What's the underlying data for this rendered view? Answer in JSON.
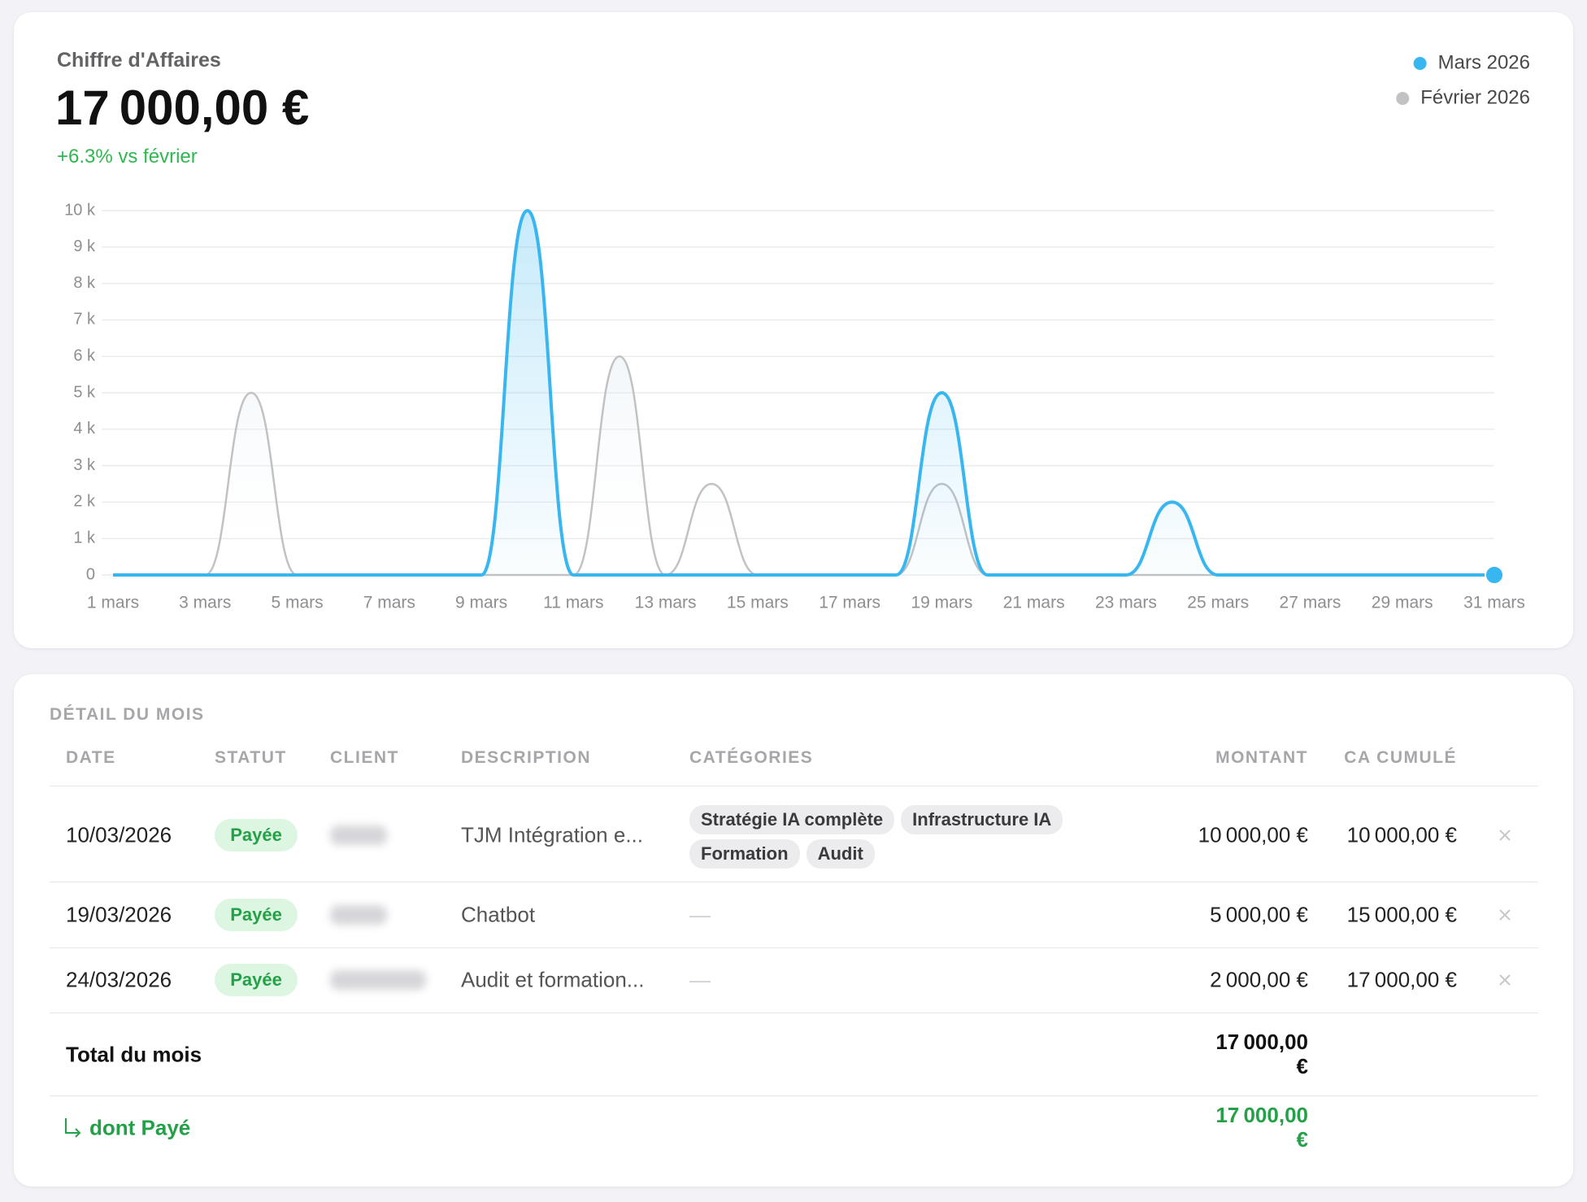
{
  "header": {
    "title": "Chiffre d'Affaires",
    "amount": "17 000,00 €",
    "change": "+6.3% vs février"
  },
  "chart_data": {
    "type": "line",
    "categories": [
      "1 mars",
      null,
      "3 mars",
      null,
      "5 mars",
      null,
      "7 mars",
      null,
      "9 mars",
      null,
      "11 mars",
      null,
      "13 mars",
      null,
      "15 mars",
      null,
      "17 mars",
      null,
      "19 mars",
      null,
      "21 mars",
      null,
      "23 mars",
      null,
      "25 mars",
      null,
      "27 mars",
      null,
      "29 mars",
      null,
      "31 mars"
    ],
    "series": [
      {
        "name": "Mars 2026",
        "color": "#38b6f0",
        "values": [
          0,
          0,
          0,
          0,
          0,
          0,
          0,
          0,
          0,
          10000,
          0,
          0,
          0,
          0,
          0,
          0,
          0,
          0,
          5000,
          0,
          0,
          0,
          0,
          2000,
          0,
          0,
          0,
          0,
          0,
          0,
          0
        ]
      },
      {
        "name": "Février 2026",
        "color": "#c2c2c4",
        "values": [
          0,
          0,
          0,
          5000,
          0,
          0,
          0,
          0,
          0,
          0,
          0,
          6000,
          0,
          2500,
          0,
          0,
          0,
          0,
          2500,
          0,
          0,
          0,
          0,
          0,
          0,
          0,
          0,
          0,
          null,
          null,
          null
        ]
      }
    ],
    "ylim": [
      0,
      10000
    ],
    "yticks": [
      {
        "value": 0,
        "label": "0"
      },
      {
        "value": 1000,
        "label": "1 k"
      },
      {
        "value": 2000,
        "label": "2 k"
      },
      {
        "value": 3000,
        "label": "3 k"
      },
      {
        "value": 4000,
        "label": "4 k"
      },
      {
        "value": 5000,
        "label": "5 k"
      },
      {
        "value": 6000,
        "label": "6 k"
      },
      {
        "value": 7000,
        "label": "7 k"
      },
      {
        "value": 8000,
        "label": "8 k"
      },
      {
        "value": 9000,
        "label": "9 k"
      },
      {
        "value": 10000,
        "label": "10 k"
      }
    ],
    "grid": true,
    "legend": "top-right"
  },
  "table": {
    "title": "DÉTAIL DU MOIS",
    "columns": [
      "DATE",
      "STATUT",
      "CLIENT",
      "DESCRIPTION",
      "CATÉGORIES",
      "MONTANT",
      "CA CUMULÉ"
    ],
    "rows": [
      {
        "date": "10/03/2026",
        "status": "Payée",
        "description": "TJM Intégration e...",
        "categories": [
          "Stratégie IA complète",
          "Infrastructure IA",
          "Formation",
          "Audit"
        ],
        "amount": "10 000,00 €",
        "cumulative": "10 000,00 €"
      },
      {
        "date": "19/03/2026",
        "status": "Payée",
        "description": "Chatbot",
        "categories": "—",
        "amount": "5 000,00 €",
        "cumulative": "15 000,00 €"
      },
      {
        "date": "24/03/2026",
        "status": "Payée",
        "description": "Audit et formation...",
        "categories": "—",
        "amount": "2 000,00 €",
        "cumulative": "17 000,00 €"
      }
    ],
    "total": {
      "label": "Total du mois",
      "amount": "17 000,00 €"
    },
    "paid": {
      "label": "dont Payé",
      "amount": "17 000,00 €"
    }
  }
}
